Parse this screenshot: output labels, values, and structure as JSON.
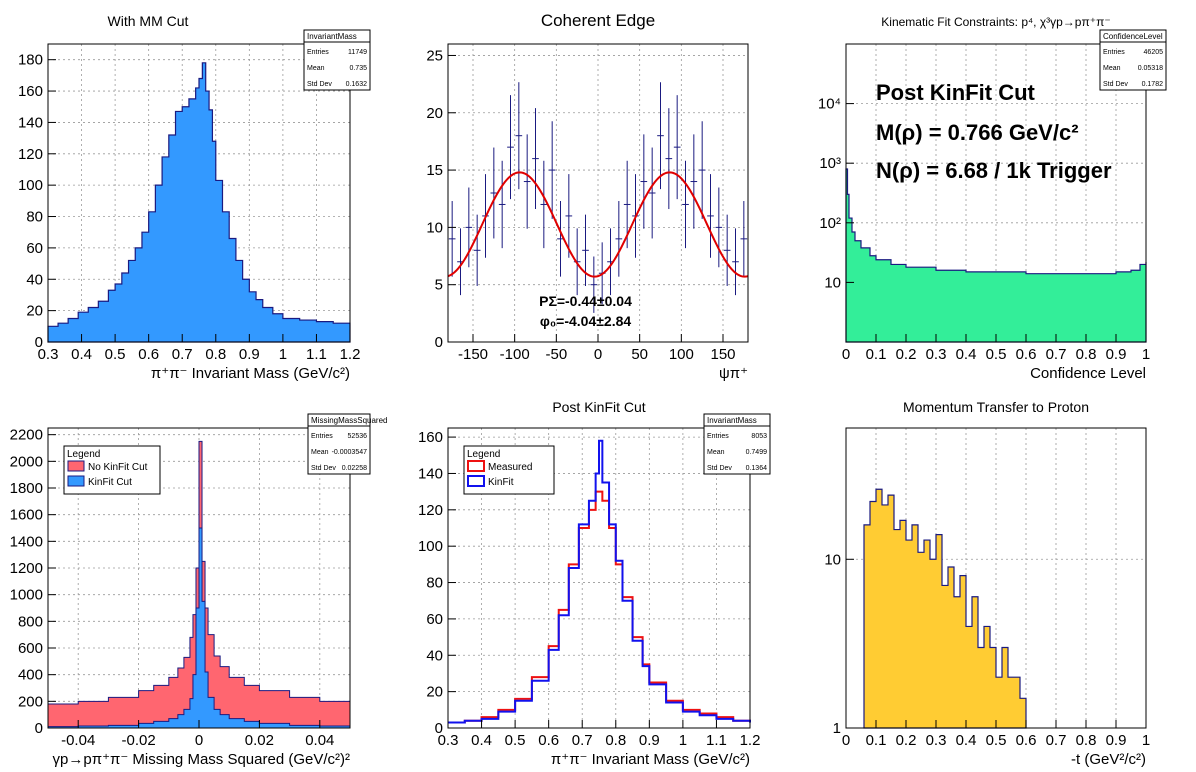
{
  "chart_data": [
    {
      "id": "p1",
      "type": "histogram",
      "title": "With MM Cut",
      "xlabel": "π⁺π⁻ Invariant Mass (GeV/c²)",
      "ylabel": "",
      "xlim": [
        0.3,
        1.2
      ],
      "ylim": [
        0,
        190
      ],
      "xticks": [
        "0.3",
        "0.4",
        "0.5",
        "0.6",
        "0.7",
        "0.8",
        "0.9",
        "1",
        "1.1",
        "1.2"
      ],
      "yticks": [
        "0",
        "20",
        "40",
        "60",
        "80",
        "100",
        "120",
        "140",
        "160",
        "180"
      ],
      "grid": true,
      "fill_color": "#3399ff",
      "line_color": "#1a1a80",
      "series": [
        {
          "x": [
            0.3,
            0.33,
            0.36,
            0.39,
            0.42,
            0.45,
            0.48,
            0.5,
            0.52,
            0.54,
            0.56,
            0.58,
            0.6,
            0.62,
            0.64,
            0.66,
            0.68,
            0.7,
            0.72,
            0.74,
            0.75,
            0.76,
            0.77,
            0.78,
            0.79,
            0.8,
            0.82,
            0.84,
            0.86,
            0.88,
            0.9,
            0.92,
            0.94,
            0.97,
            1.0,
            1.05,
            1.1,
            1.15,
            1.2
          ],
          "y": [
            10,
            12,
            15,
            19,
            22,
            26,
            33,
            37,
            44,
            52,
            60,
            70,
            83,
            100,
            118,
            132,
            147,
            150,
            155,
            162,
            168,
            178,
            160,
            148,
            128,
            103,
            83,
            66,
            52,
            40,
            32,
            27,
            22,
            18,
            15,
            14,
            13,
            12,
            10
          ]
        }
      ],
      "stats": {
        "title": "InvariantMass",
        "rows": [
          [
            "Entries",
            "11749"
          ],
          [
            "Mean",
            "0.735"
          ],
          [
            "Std Dev",
            "0.1632"
          ]
        ]
      }
    },
    {
      "id": "p2",
      "type": "scatter",
      "title": "Coherent Edge",
      "xlabel": "ψπ⁺",
      "ylabel": "",
      "xlim": [
        -180,
        180
      ],
      "ylim": [
        0,
        26
      ],
      "xticks": [
        "-150",
        "-100",
        "-50",
        "0",
        "50",
        "100",
        "150"
      ],
      "yticks": [
        "0",
        "5",
        "10",
        "15",
        "20",
        "25"
      ],
      "grid": true,
      "points_color": "#1a1a80",
      "fit_color": "#e00000",
      "fit": {
        "offset": 10.25,
        "amplitude": 4.55,
        "phi_deg": -4.04
      },
      "series": [
        {
          "x": [
            -175,
            -165,
            -155,
            -145,
            -135,
            -125,
            -115,
            -105,
            -95,
            -85,
            -75,
            -65,
            -55,
            -45,
            -35,
            -25,
            -15,
            -5,
            5,
            15,
            25,
            35,
            45,
            55,
            65,
            75,
            85,
            95,
            105,
            115,
            125,
            135,
            145,
            155,
            165,
            175
          ],
          "y": [
            9,
            7,
            10,
            8,
            11,
            13,
            12,
            17,
            18,
            14,
            16,
            12,
            15,
            9,
            11,
            7,
            8,
            5,
            6,
            7,
            9,
            12,
            11,
            14,
            13,
            18,
            16,
            17,
            12,
            14,
            15,
            11,
            10,
            8,
            7,
            9
          ]
        }
      ],
      "annotation": [
        "PΣ=-0.44±0.04",
        "φ₀=-4.04±2.84"
      ]
    },
    {
      "id": "p3",
      "type": "histogram",
      "title": "Kinematic Fit Constraints: p⁴, χ³γp→pπ⁺π⁻",
      "xlabel": "Confidence Level",
      "ylabel": "",
      "xlim": [
        0,
        1
      ],
      "ylim_log": [
        1,
        100000
      ],
      "log_y": true,
      "xticks": [
        "0",
        "0.1",
        "0.2",
        "0.3",
        "0.4",
        "0.5",
        "0.6",
        "0.7",
        "0.8",
        "0.9",
        "1"
      ],
      "yticks": [
        "10",
        "10²",
        "10³",
        "10⁴"
      ],
      "grid": true,
      "fill_color": "#33ee99",
      "line_color": "#1a1a80",
      "series": [
        {
          "x": [
            0,
            0.005,
            0.01,
            0.02,
            0.03,
            0.05,
            0.08,
            0.1,
            0.15,
            0.2,
            0.3,
            0.4,
            0.5,
            0.6,
            0.7,
            0.8,
            0.9,
            0.95,
            0.98,
            1.0
          ],
          "y": [
            800,
            300,
            120,
            70,
            50,
            38,
            28,
            24,
            20,
            18,
            16,
            15,
            15,
            14,
            14,
            14,
            15,
            16,
            20,
            22
          ]
        }
      ],
      "annotation": [
        "Post KinFit Cut",
        "M(ρ) = 0.766 GeV/c²",
        "N(ρ) = 6.68 / 1k Trigger"
      ],
      "stats": {
        "title": "ConfidenceLevel",
        "rows": [
          [
            "Entries",
            "46205"
          ],
          [
            "Mean",
            "0.05318"
          ],
          [
            "Std Dev",
            "0.1782"
          ]
        ]
      }
    },
    {
      "id": "p4",
      "type": "histogram",
      "title": "",
      "xlabel": "γp→pπ⁺π⁻ Missing Mass Squared (GeV/c²)²",
      "ylabel": "",
      "xlim": [
        -0.05,
        0.05
      ],
      "ylim": [
        0,
        2250
      ],
      "xticks": [
        "-0.04",
        "-0.02",
        "0",
        "0.02",
        "0.04"
      ],
      "yticks": [
        "0",
        "200",
        "400",
        "600",
        "800",
        "1000",
        "1200",
        "1400",
        "1600",
        "1800",
        "2000",
        "2200"
      ],
      "grid": true,
      "legend": {
        "title": "Legend",
        "entries": [
          "No KinFit Cut",
          "KinFit Cut"
        ]
      },
      "series": [
        {
          "name": "No KinFit Cut",
          "color": "#ff6670",
          "x": [
            -0.05,
            -0.04,
            -0.03,
            -0.02,
            -0.015,
            -0.01,
            -0.007,
            -0.005,
            -0.003,
            -0.002,
            -0.001,
            0,
            0.001,
            0.002,
            0.003,
            0.005,
            0.007,
            0.01,
            0.015,
            0.02,
            0.03,
            0.04,
            0.05
          ],
          "y": [
            180,
            200,
            230,
            280,
            320,
            380,
            450,
            530,
            680,
            850,
            1200,
            2150,
            1250,
            900,
            700,
            540,
            460,
            380,
            320,
            280,
            230,
            200,
            170
          ]
        },
        {
          "name": "KinFit Cut",
          "color": "#3399ff",
          "x": [
            -0.05,
            -0.04,
            -0.03,
            -0.02,
            -0.015,
            -0.01,
            -0.007,
            -0.005,
            -0.003,
            -0.002,
            -0.001,
            0,
            0.001,
            0.002,
            0.003,
            0.005,
            0.007,
            0.01,
            0.015,
            0.02,
            0.03,
            0.04,
            0.05
          ],
          "y": [
            10,
            15,
            20,
            35,
            50,
            70,
            100,
            140,
            220,
            400,
            900,
            1500,
            950,
            420,
            230,
            140,
            100,
            70,
            50,
            35,
            20,
            15,
            10
          ]
        }
      ],
      "stats": {
        "title": "MissingMassSquared",
        "rows": [
          [
            "Entries",
            "52536"
          ],
          [
            "Mean",
            "-0.0003547"
          ],
          [
            "Std Dev",
            "0.02258"
          ]
        ]
      }
    },
    {
      "id": "p5",
      "type": "line",
      "title": "Post KinFit Cut",
      "xlabel": "π⁺π⁻ Invariant Mass (GeV/c²)",
      "ylabel": "",
      "xlim": [
        0.3,
        1.2
      ],
      "ylim": [
        0,
        165
      ],
      "xticks": [
        "0.3",
        "0.4",
        "0.5",
        "0.6",
        "0.7",
        "0.8",
        "0.9",
        "1",
        "1.1",
        "1.2"
      ],
      "yticks": [
        "0",
        "20",
        "40",
        "60",
        "80",
        "100",
        "120",
        "140",
        "160"
      ],
      "grid": true,
      "legend": {
        "title": "Legend",
        "entries": [
          "Measured",
          "KinFit"
        ]
      },
      "series": [
        {
          "name": "Measured",
          "color": "#ee1111",
          "x": [
            0.3,
            0.35,
            0.4,
            0.45,
            0.5,
            0.55,
            0.6,
            0.63,
            0.66,
            0.69,
            0.72,
            0.74,
            0.76,
            0.78,
            0.8,
            0.82,
            0.85,
            0.88,
            0.9,
            0.95,
            1.0,
            1.05,
            1.1,
            1.15,
            1.2
          ],
          "y": [
            3,
            4,
            6,
            10,
            16,
            28,
            45,
            65,
            90,
            110,
            120,
            130,
            125,
            110,
            90,
            72,
            50,
            35,
            25,
            15,
            10,
            8,
            6,
            4,
            3
          ]
        },
        {
          "name": "KinFit",
          "color": "#1111ee",
          "x": [
            0.3,
            0.35,
            0.4,
            0.45,
            0.5,
            0.55,
            0.6,
            0.63,
            0.66,
            0.69,
            0.72,
            0.74,
            0.75,
            0.76,
            0.78,
            0.8,
            0.82,
            0.85,
            0.88,
            0.9,
            0.95,
            1.0,
            1.05,
            1.1,
            1.15,
            1.2
          ],
          "y": [
            3,
            4,
            5,
            9,
            15,
            26,
            43,
            62,
            88,
            112,
            125,
            140,
            158,
            135,
            112,
            92,
            70,
            48,
            34,
            24,
            14,
            9,
            7,
            5,
            4,
            3
          ]
        }
      ],
      "stats": {
        "title": "InvariantMass",
        "rows": [
          [
            "Entries",
            "8053"
          ],
          [
            "Mean",
            "0.7499"
          ],
          [
            "Std Dev",
            "0.1364"
          ]
        ]
      }
    },
    {
      "id": "p6",
      "type": "histogram",
      "title": "Momentum Transfer to Proton",
      "xlabel": "-t (GeV²/c²)",
      "ylabel": "",
      "xlim": [
        0,
        1
      ],
      "ylim_log": [
        1,
        60
      ],
      "log_y": true,
      "xticks": [
        "0",
        "0.1",
        "0.2",
        "0.3",
        "0.4",
        "0.5",
        "0.6",
        "0.7",
        "0.8",
        "0.9",
        "1"
      ],
      "yticks": [
        "1",
        "10"
      ],
      "grid": true,
      "fill_color": "#ffcc33",
      "line_color": "#1a1a80",
      "series": [
        {
          "x": [
            0.06,
            0.08,
            0.1,
            0.12,
            0.14,
            0.16,
            0.18,
            0.2,
            0.22,
            0.24,
            0.26,
            0.28,
            0.3,
            0.32,
            0.34,
            0.36,
            0.38,
            0.4,
            0.42,
            0.44,
            0.46,
            0.48,
            0.5,
            0.52,
            0.54,
            0.56,
            0.58
          ],
          "y": [
            16,
            22,
            26,
            21,
            24,
            15,
            17,
            13,
            16,
            11,
            13,
            10,
            14,
            7,
            9,
            6,
            8,
            4,
            6,
            3,
            4,
            3,
            2,
            3,
            2,
            2,
            1.5
          ]
        }
      ]
    }
  ]
}
